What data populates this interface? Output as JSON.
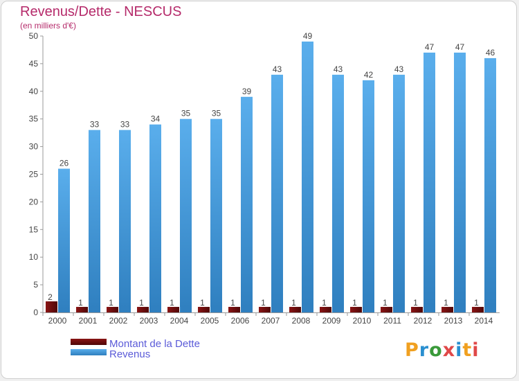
{
  "title": "Revenus/Dette - NESCUS",
  "subtitle": "(en milliers d'€)",
  "legend": {
    "debt_label": "Montant de la Dette",
    "revenue_label": "Revenus"
  },
  "logo_text": "Proxiti",
  "colors": {
    "debt": "#6b0c0c",
    "revenue": "#3d96d8",
    "title": "#b52a6a",
    "legend_text": "#5a5ad8"
  },
  "chart_data": {
    "type": "bar",
    "title": "Revenus/Dette - NESCUS",
    "ylabel": "(en milliers d'€)",
    "xlabel": "",
    "ylim": [
      0,
      50
    ],
    "yticks": [
      0,
      5,
      10,
      15,
      20,
      25,
      30,
      35,
      40,
      45,
      50
    ],
    "grid": false,
    "legend_position": "bottom-left",
    "categories": [
      "2000",
      "2001",
      "2002",
      "2003",
      "2004",
      "2005",
      "2006",
      "2007",
      "2008",
      "2009",
      "2010",
      "2011",
      "2012",
      "2013",
      "2014"
    ],
    "series": [
      {
        "name": "Montant de la Dette",
        "values": [
          2,
          1,
          1,
          1,
          1,
          1,
          1,
          1,
          1,
          1,
          1,
          1,
          1,
          1,
          1
        ]
      },
      {
        "name": "Revenus",
        "values": [
          26,
          33,
          33,
          34,
          35,
          35,
          39,
          43,
          49,
          43,
          42,
          43,
          47,
          47,
          46
        ]
      }
    ]
  }
}
